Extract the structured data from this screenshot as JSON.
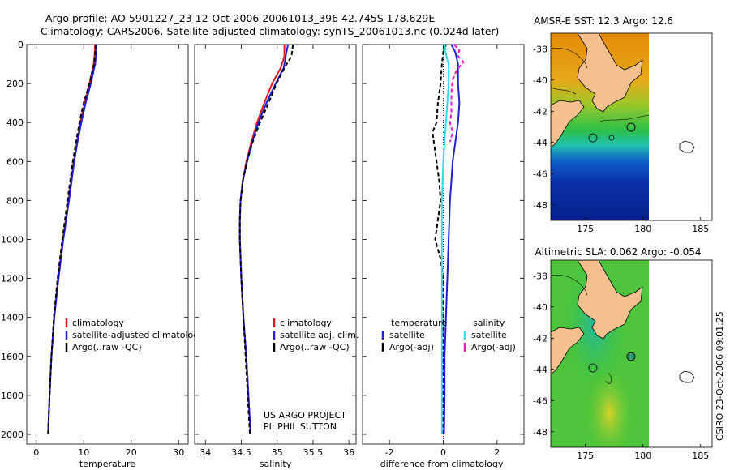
{
  "header": {
    "line1": "Argo profile: AO 5901227_23 12-Oct-2006 20061013_396 42.745S 178.629E",
    "line2": "Climatology: CARS2006. Satellite-adjusted climatology: synTS_20061013.nc (0.024d later)"
  },
  "credit": {
    "project": "US ARGO PROJECT",
    "pi": "PI: PHIL SUTTON",
    "stamp": "CSIRO 23-Oct-2006 09:01:25"
  },
  "colors": {
    "climatology": "#e41a1c",
    "satellite": "#1f1fd6",
    "argo": "#000000",
    "cyan": "#33ddee",
    "magenta": "#e020c8",
    "land": "#f4c08e"
  },
  "chart_data": [
    {
      "type": "line",
      "id": "temperature",
      "xlabel": "temperature",
      "ylabel": "",
      "xlim": [
        -2,
        32
      ],
      "ylim": [
        2050,
        0
      ],
      "xticks": [
        0,
        10,
        20,
        30
      ],
      "xtick_labels": [
        "0",
        "10",
        "20",
        "30"
      ],
      "yticks": [
        0,
        200,
        400,
        600,
        800,
        1000,
        1200,
        1400,
        1600,
        1800,
        2000
      ],
      "ytick_labels": [
        "0",
        "200",
        "400",
        "600",
        "800",
        "1000",
        "1200",
        "1400",
        "1600",
        "1800",
        "2000"
      ],
      "legend": [
        "climatology",
        "satellite-adjusted climatology",
        "Argo(..raw -QC)"
      ],
      "legend_position": "lower-center",
      "series": [
        {
          "name": "climatology",
          "style": "solid",
          "color_key": "climatology",
          "depth": [
            0,
            50,
            100,
            200,
            300,
            400,
            500,
            600,
            800,
            1000,
            1200,
            1400,
            1600,
            1800,
            2000
          ],
          "values": [
            12.4,
            12.3,
            12.1,
            11.2,
            10.2,
            9.3,
            8.6,
            7.9,
            6.8,
            5.6,
            4.6,
            3.8,
            3.2,
            2.8,
            2.5
          ]
        },
        {
          "name": "satellite-adjusted climatology",
          "style": "solid",
          "color_key": "satellite",
          "depth": [
            0,
            50,
            100,
            200,
            300,
            400,
            500,
            600,
            800,
            1000,
            1200,
            1400,
            1600,
            1800,
            2000
          ],
          "values": [
            12.7,
            12.6,
            12.4,
            11.5,
            10.4,
            9.5,
            8.7,
            8.0,
            6.9,
            5.7,
            4.7,
            3.8,
            3.2,
            2.8,
            2.5
          ]
        },
        {
          "name": "Argo(..raw -QC)",
          "style": "dashed",
          "color_key": "argo",
          "depth": [
            0,
            50,
            100,
            200,
            300,
            400,
            500,
            600,
            800,
            1000,
            1200,
            1400,
            1600,
            1800,
            2000
          ],
          "values": [
            12.5,
            12.4,
            12.2,
            11.2,
            10.0,
            9.1,
            8.4,
            7.7,
            6.6,
            5.5,
            4.5,
            3.7,
            3.2,
            2.8,
            2.5
          ]
        }
      ]
    },
    {
      "type": "line",
      "id": "salinity",
      "xlabel": "salinity",
      "xlim": [
        33.85,
        36.1
      ],
      "ylim": [
        2050,
        0
      ],
      "xticks": [
        34,
        34.5,
        35,
        35.5,
        36
      ],
      "xtick_labels": [
        "34",
        "34.5",
        "35",
        "35.5",
        "36"
      ],
      "legend": [
        "climatology",
        "satellite adj. clim.",
        "Argo(..raw -QC)"
      ],
      "legend_position": "lower-center",
      "series": [
        {
          "name": "climatology",
          "style": "solid",
          "color_key": "climatology",
          "depth": [
            0,
            60,
            120,
            200,
            300,
            400,
            500,
            600,
            700,
            800,
            900,
            1000,
            1200,
            1400,
            1600,
            1800,
            2000
          ],
          "values": [
            35.1,
            35.1,
            35.05,
            34.93,
            34.82,
            34.72,
            34.64,
            34.57,
            34.52,
            34.49,
            34.48,
            34.48,
            34.5,
            34.53,
            34.57,
            34.6,
            34.63
          ]
        },
        {
          "name": "satellite adj. clim.",
          "style": "solid",
          "color_key": "satellite",
          "depth": [
            0,
            60,
            120,
            200,
            300,
            400,
            500,
            600,
            700,
            800,
            900,
            1000,
            1200,
            1400,
            1600,
            1800,
            2000
          ],
          "values": [
            35.15,
            35.12,
            35.09,
            34.98,
            34.85,
            34.74,
            34.65,
            34.58,
            34.52,
            34.49,
            34.48,
            34.48,
            34.5,
            34.53,
            34.57,
            34.6,
            34.63
          ]
        },
        {
          "name": "Argo(..raw -QC)",
          "style": "dashed",
          "color_key": "argo",
          "depth": [
            0,
            60,
            120,
            200,
            300,
            400,
            500,
            600,
            700,
            800,
            900,
            1000,
            1200,
            1400,
            1600,
            1800,
            2000
          ],
          "values": [
            35.22,
            35.2,
            35.1,
            34.99,
            34.88,
            34.76,
            34.66,
            34.58,
            34.52,
            34.49,
            34.48,
            34.48,
            34.5,
            34.53,
            34.56,
            34.59,
            34.62
          ]
        }
      ]
    },
    {
      "type": "line",
      "id": "difference",
      "xlabel": "difference from climatology",
      "xlim": [
        -3,
        3
      ],
      "ylim": [
        2050,
        0
      ],
      "xticks": [
        -2,
        0,
        2
      ],
      "xtick_labels": [
        "-2",
        "0",
        "2"
      ],
      "legend_titles": [
        "temperature",
        "salinity"
      ],
      "legend": [
        "satellite",
        "Argo(-adj)",
        "satellite",
        "Argo(-adj)"
      ],
      "legend_position": "lower-center",
      "series": [
        {
          "name": "temperature satellite",
          "style": "solid",
          "color_key": "satellite",
          "depth": [
            0,
            40,
            100,
            200,
            300,
            400,
            500,
            600,
            700,
            800,
            1000,
            1200,
            1400,
            1600,
            1800,
            2000
          ],
          "values": [
            0.3,
            0.45,
            0.55,
            0.55,
            0.6,
            0.55,
            0.45,
            0.35,
            0.3,
            0.25,
            0.2,
            0.15,
            0.1,
            0.05,
            0.05,
            0.03
          ]
        },
        {
          "name": "temperature Argo(-adj)",
          "style": "dashed",
          "color_key": "argo",
          "depth": [
            0,
            40,
            100,
            200,
            300,
            400,
            450,
            500,
            600,
            700,
            800,
            900,
            1000,
            1100,
            1200,
            1400,
            1600,
            2000
          ],
          "values": [
            0.1,
            0.0,
            -0.05,
            -0.1,
            -0.2,
            -0.25,
            -0.4,
            -0.35,
            -0.25,
            -0.15,
            -0.1,
            -0.2,
            -0.3,
            -0.1,
            0.0,
            -0.02,
            0.0,
            0.0
          ]
        },
        {
          "name": "salinity satellite",
          "style": "solid",
          "color_key": "cyan",
          "depth": [
            0,
            50,
            100,
            200,
            300,
            400,
            600,
            800,
            1000,
            1200,
            1400,
            1600,
            1800,
            2000
          ],
          "values": [
            0.05,
            0.1,
            0.2,
            0.2,
            0.15,
            0.1,
            0.0,
            -0.05,
            -0.05,
            -0.05,
            -0.05,
            -0.05,
            -0.05,
            -0.05
          ]
        },
        {
          "name": "salinity Argo(-adj)",
          "style": "dashed",
          "color_key": "magenta",
          "depth": [
            0,
            30,
            60,
            90,
            130,
            180,
            250,
            350,
            400,
            450,
            500
          ],
          "values": [
            0.4,
            0.6,
            0.55,
            0.75,
            0.5,
            0.35,
            0.3,
            0.3,
            0.25,
            0.35,
            0.25
          ]
        }
      ]
    },
    {
      "type": "heatmap",
      "id": "sst-map",
      "title": "AMSR-E SST: 12.3 Argo: 12.6",
      "xlim": [
        172,
        186
      ],
      "ylim": [
        -49,
        -37
      ],
      "xticks": [
        175,
        180,
        185
      ],
      "xtick_labels": [
        "175",
        "180",
        "185"
      ],
      "yticks": [
        -38,
        -40,
        -42,
        -44,
        -46,
        -48
      ],
      "ytick_labels": [
        "-38",
        "-40",
        "-42",
        "-44",
        "-46",
        "-48"
      ],
      "float_position": {
        "lon": 178.629,
        "lat": -42.745
      }
    },
    {
      "type": "heatmap",
      "id": "sla-map",
      "title": "Altimetric SLA: 0.062 Argo: -0.054",
      "xlim": [
        172,
        186
      ],
      "ylim": [
        -49,
        -37
      ],
      "xticks": [
        175,
        180,
        185
      ],
      "xtick_labels": [
        "175",
        "180",
        "185"
      ],
      "yticks": [
        -38,
        -40,
        -42,
        -44,
        -46,
        -48
      ],
      "ytick_labels": [
        "-38",
        "-40",
        "-42",
        "-44",
        "-46",
        "-48"
      ],
      "float_position": {
        "lon": 178.629,
        "lat": -42.745
      }
    }
  ]
}
